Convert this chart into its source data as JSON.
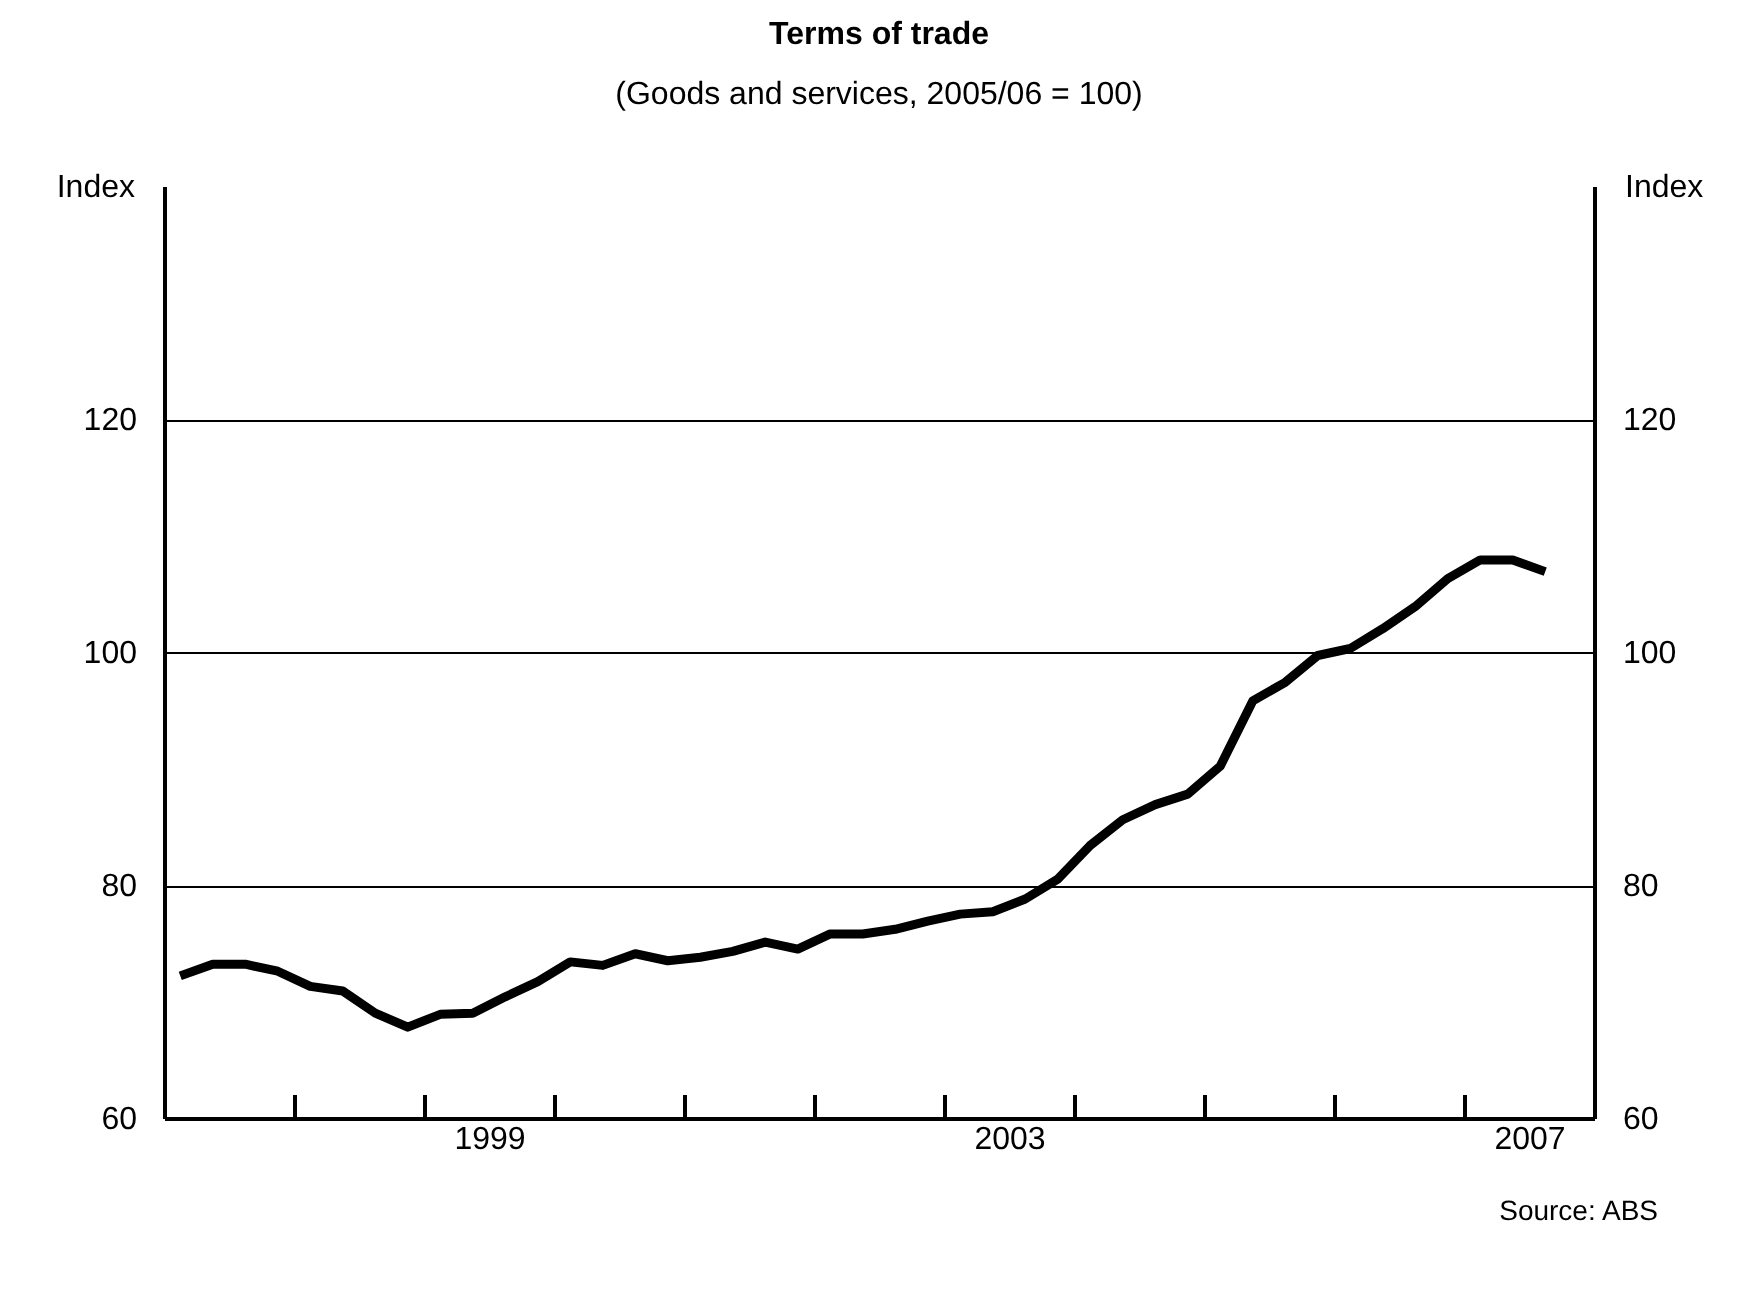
{
  "chart_data": {
    "type": "line",
    "title": "Terms of trade",
    "subtitle": "(Goods and services, 2005/06 = 100)",
    "ylabel": "Index",
    "y2label": "Index",
    "x": [
      1997.125,
      1997.375,
      1997.625,
      1997.875,
      1998.125,
      1998.375,
      1998.625,
      1998.875,
      1999.125,
      1999.375,
      1999.625,
      1999.875,
      2000.125,
      2000.375,
      2000.625,
      2000.875,
      2001.125,
      2001.375,
      2001.625,
      2001.875,
      2002.125,
      2002.375,
      2002.625,
      2002.875,
      2003.125,
      2003.375,
      2003.625,
      2003.875,
      2004.125,
      2004.375,
      2004.625,
      2004.875,
      2005.125,
      2005.375,
      2005.625,
      2005.875,
      2006.125,
      2006.375,
      2006.625,
      2006.875,
      2007.125,
      2007.375,
      2007.625
    ],
    "series": [
      {
        "color": "#000000",
        "values": [
          72.2,
          73.2,
          73.2,
          72.6,
          71.3,
          70.9,
          69.0,
          67.8,
          68.9,
          69.0,
          70.4,
          71.7,
          73.4,
          73.1,
          74.1,
          73.5,
          73.8,
          74.3,
          75.1,
          74.5,
          75.8,
          75.8,
          76.2,
          76.9,
          77.5,
          77.7,
          78.8,
          80.5,
          83.4,
          85.6,
          86.9,
          87.8,
          90.2,
          95.8,
          97.4,
          99.7,
          100.3,
          102.0,
          103.9,
          106.3,
          107.9,
          107.9,
          106.9
        ]
      }
    ],
    "xlim": [
      1997,
      2008
    ],
    "xticks": [
      {
        "value": 1998,
        "label": null
      },
      {
        "value": 1999,
        "label": null
      },
      {
        "value": 1999.5,
        "label": "1999"
      },
      {
        "value": 2000,
        "label": null
      },
      {
        "value": 2001,
        "label": null
      },
      {
        "value": 2002,
        "label": null
      },
      {
        "value": 2003,
        "label": null
      },
      {
        "value": 2003.5,
        "label": "2003"
      },
      {
        "value": 2004,
        "label": null
      },
      {
        "value": 2005,
        "label": null
      },
      {
        "value": 2006,
        "label": null
      },
      {
        "value": 2007,
        "label": null
      },
      {
        "value": 2007.5,
        "label": "2007"
      }
    ],
    "ylim": [
      60,
      140
    ],
    "yticks": [
      60,
      80,
      100,
      120
    ],
    "y2lim": [
      60,
      140
    ],
    "y2ticks": [
      60,
      80,
      100,
      120
    ],
    "grid": "y",
    "annotations": [
      "Source: ABS"
    ]
  }
}
